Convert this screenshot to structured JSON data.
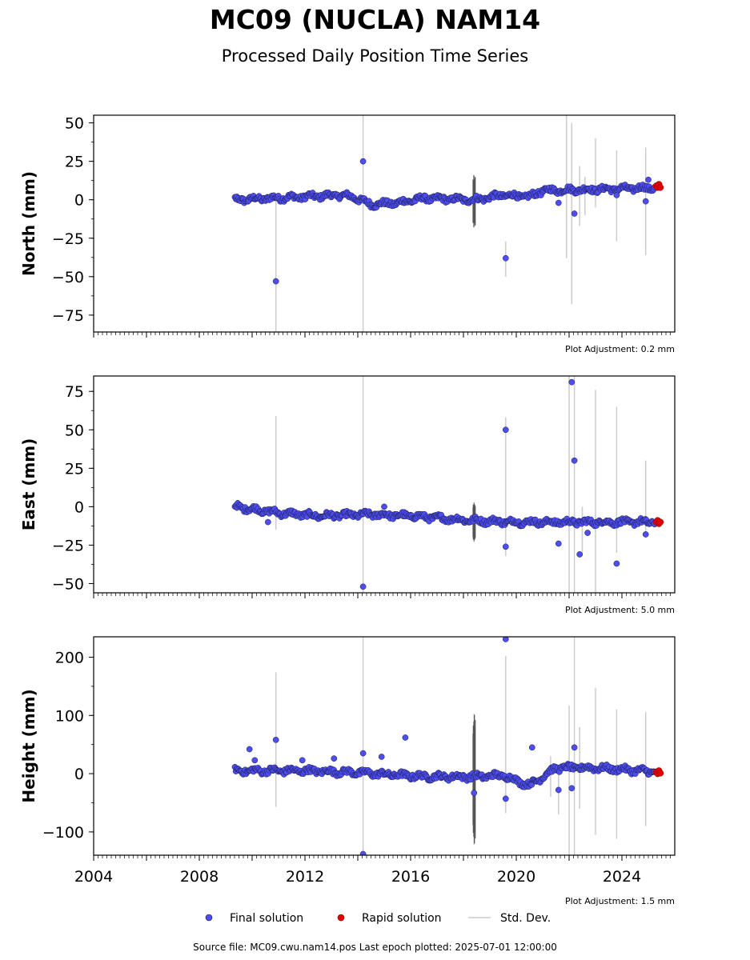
{
  "header": {
    "title": "MC09 (NUCLA) NAM14",
    "subtitle": "Processed Daily Position Time Series"
  },
  "footer": {
    "source": "Source file: MC09.cwu.nam14.pos  Last epoch plotted: 2025-07-01 12:00:00"
  },
  "legend": {
    "final": "Final solution",
    "rapid": "Rapid solution",
    "std": "Std. Dev.",
    "colors": {
      "final": "#4d4df0",
      "rapid": "#e00000",
      "std": "#cccccc",
      "edge": "#1a1a4a"
    }
  },
  "chart_data": [
    {
      "type": "scatter",
      "ylabel": "North (mm)",
      "adjustment": "Plot Adjustment: 0.2 mm",
      "xlim": [
        2004,
        2026
      ],
      "ylim": [
        -86,
        55
      ],
      "yticks": [
        50,
        25,
        0,
        -25,
        -50,
        -75
      ],
      "ytick_labels": [
        "50",
        "25",
        "0",
        "−25",
        "−50",
        "−75"
      ],
      "trend": [
        [
          2009.4,
          0
        ],
        [
          2013.3,
          3
        ],
        [
          2013.8,
          2
        ],
        [
          2014.5,
          -3
        ],
        [
          2015.5,
          -2
        ],
        [
          2016.5,
          1
        ],
        [
          2018.4,
          0
        ],
        [
          2019.5,
          3
        ],
        [
          2020.5,
          2
        ],
        [
          2021,
          6
        ],
        [
          2023.5,
          7
        ],
        [
          2025.5,
          8
        ]
      ],
      "outliers": [
        [
          2010.9,
          -53
        ],
        [
          2014.2,
          25
        ],
        [
          2019.6,
          -38
        ],
        [
          2021.6,
          -2
        ],
        [
          2022.2,
          -9
        ],
        [
          2023.8,
          3
        ],
        [
          2024.9,
          -1
        ],
        [
          2025.0,
          13
        ]
      ],
      "std_bars": [
        [
          2010.9,
          -86,
          0
        ],
        [
          2014.2,
          -86,
          55
        ],
        [
          2019.6,
          -50,
          -27
        ],
        [
          2018.4,
          -18,
          16
        ],
        [
          2021.9,
          -38,
          55
        ],
        [
          2022.1,
          -68,
          50
        ],
        [
          2022.4,
          -17,
          22
        ],
        [
          2022.6,
          -10,
          15
        ],
        [
          2023.0,
          -5,
          40
        ],
        [
          2023.8,
          -27,
          32
        ],
        [
          2024.9,
          -36,
          34
        ]
      ],
      "rapid": [
        [
          2025.3,
          9
        ],
        [
          2025.35,
          8
        ],
        [
          2025.4,
          10
        ],
        [
          2025.45,
          8
        ]
      ]
    },
    {
      "type": "scatter",
      "ylabel": "East (mm)",
      "adjustment": "Plot Adjustment: 5.0 mm",
      "xlim": [
        2004,
        2026
      ],
      "ylim": [
        -56,
        85
      ],
      "yticks": [
        75,
        50,
        25,
        0,
        -25,
        -50
      ],
      "ytick_labels": [
        "75",
        "50",
        "25",
        "0",
        "−25",
        "−50"
      ],
      "trend": [
        [
          2009.4,
          0
        ],
        [
          2011,
          -4
        ],
        [
          2012.5,
          -6
        ],
        [
          2014.5,
          -5
        ],
        [
          2016,
          -6
        ],
        [
          2018.4,
          -9
        ],
        [
          2020,
          -10
        ],
        [
          2022,
          -10
        ],
        [
          2025.5,
          -10
        ]
      ],
      "outliers": [
        [
          2010.6,
          -10
        ],
        [
          2014.2,
          -52
        ],
        [
          2015.0,
          0
        ],
        [
          2019.6,
          50
        ],
        [
          2019.6,
          -26
        ],
        [
          2021.6,
          -24
        ],
        [
          2022.1,
          81
        ],
        [
          2022.2,
          30
        ],
        [
          2022.4,
          -31
        ],
        [
          2022.7,
          -17
        ],
        [
          2023.8,
          -37
        ],
        [
          2024.9,
          -18
        ]
      ],
      "std_bars": [
        [
          2010.9,
          -15,
          59
        ],
        [
          2014.2,
          -56,
          85
        ],
        [
          2018.4,
          -23,
          3
        ],
        [
          2019.6,
          -32,
          58
        ],
        [
          2022.0,
          -56,
          85
        ],
        [
          2022.2,
          -56,
          85
        ],
        [
          2022.5,
          -30,
          0
        ],
        [
          2023.0,
          -56,
          76
        ],
        [
          2023.8,
          -30,
          65
        ],
        [
          2024.9,
          -20,
          30
        ]
      ],
      "rapid": [
        [
          2025.3,
          -10
        ],
        [
          2025.35,
          -9
        ],
        [
          2025.4,
          -11
        ],
        [
          2025.45,
          -10
        ]
      ]
    },
    {
      "type": "scatter",
      "ylabel": "Height (mm)",
      "adjustment": "Plot Adjustment: 1.5 mm",
      "xlim": [
        2004,
        2026
      ],
      "ylim": [
        -140,
        235
      ],
      "yticks": [
        200,
        100,
        0,
        -100
      ],
      "ytick_labels": [
        "200",
        "100",
        "0",
        "−100"
      ],
      "xticks": [
        2004,
        2008,
        2012,
        2016,
        2020,
        2024
      ],
      "trend": [
        [
          2009.4,
          5
        ],
        [
          2012,
          5
        ],
        [
          2014,
          2
        ],
        [
          2016.5,
          -5
        ],
        [
          2018.4,
          -5
        ],
        [
          2019.5,
          -3
        ],
        [
          2020.5,
          -20
        ],
        [
          2021.5,
          10
        ],
        [
          2023,
          10
        ],
        [
          2025.5,
          3
        ]
      ],
      "outliers": [
        [
          2009.9,
          42
        ],
        [
          2010.1,
          23
        ],
        [
          2010.9,
          58
        ],
        [
          2011.9,
          23
        ],
        [
          2013.1,
          26
        ],
        [
          2014.2,
          35
        ],
        [
          2014.2,
          -138
        ],
        [
          2014.9,
          29
        ],
        [
          2015.8,
          62
        ],
        [
          2018.4,
          -33
        ],
        [
          2019.6,
          -43
        ],
        [
          2019.6,
          231
        ],
        [
          2020.6,
          45
        ],
        [
          2021.6,
          -28
        ],
        [
          2022.1,
          -25
        ],
        [
          2022.2,
          45
        ]
      ],
      "std_bars": [
        [
          2010.9,
          -57,
          174
        ],
        [
          2014.2,
          -140,
          235
        ],
        [
          2018.4,
          -122,
          103
        ],
        [
          2019.6,
          -68,
          202
        ],
        [
          2021.3,
          -40,
          30
        ],
        [
          2021.6,
          -70,
          15
        ],
        [
          2022.0,
          -140,
          117
        ],
        [
          2022.2,
          -140,
          235
        ],
        [
          2022.4,
          -60,
          80
        ],
        [
          2023.0,
          -105,
          147
        ],
        [
          2023.8,
          -112,
          110
        ],
        [
          2024.9,
          -90,
          106
        ]
      ],
      "rapid": [
        [
          2025.3,
          3
        ],
        [
          2025.35,
          0
        ],
        [
          2025.4,
          5
        ],
        [
          2025.45,
          1
        ]
      ]
    }
  ]
}
